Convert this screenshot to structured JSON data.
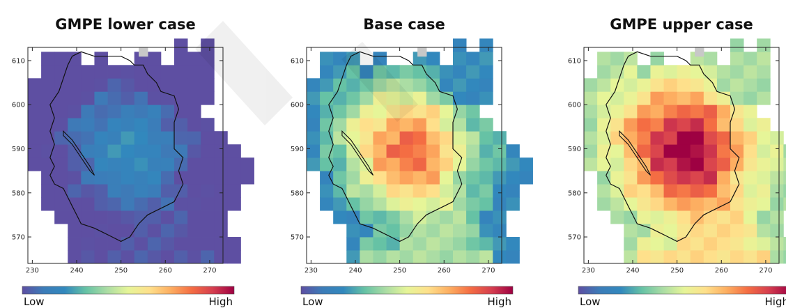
{
  "chart_data": [
    {
      "type": "heatmap",
      "title": "GMPE lower case",
      "xticks": [
        230,
        240,
        250,
        260,
        270
      ],
      "yticks": [
        570,
        580,
        590,
        600,
        610
      ],
      "xlim": [
        229,
        273
      ],
      "ylim": [
        564,
        613
      ],
      "colorbar": {
        "low_label": "Low",
        "high_label": "High"
      },
      "shift": -2.7,
      "scale": 0.45
    },
    {
      "type": "heatmap",
      "title": "Base case",
      "xticks": [
        230,
        240,
        250,
        260,
        270
      ],
      "yticks": [
        570,
        580,
        590,
        600,
        610
      ],
      "xlim": [
        229,
        273
      ],
      "ylim": [
        564,
        613
      ],
      "colorbar": {
        "low_label": "Low",
        "high_label": "High"
      },
      "shift": 0,
      "scale": 1
    },
    {
      "type": "heatmap",
      "title": "GMPE upper case",
      "xticks": [
        230,
        240,
        250,
        260,
        270
      ],
      "yticks": [
        570,
        580,
        590,
        600,
        610
      ],
      "xlim": [
        229,
        273
      ],
      "ylim": [
        564,
        613
      ],
      "colorbar": {
        "low_label": "Low",
        "high_label": "High"
      },
      "shift": 2.0,
      "scale": 1
    }
  ],
  "grid": {
    "x0": 229,
    "y0": 564,
    "dx": 3,
    "dy": 3,
    "rows": [
      "...2444444444422.",
      "...2333444443322.",
      "...223344444422..",
      "..2233345444322..",
      ".223445555543322.",
      ".234456666543322.",
      ".2345677775433222",
      "23345778876543322",
      "2335678887654332.",
      "234567788765433..",
      "23456677765433...",
      "2334556666543....",
      "23334555543222...",
      "22333444432222...",
      ".2232333332222...",
      ".222.2..22.222...",
      "...........2.2..."
    ]
  },
  "gray_cell": {
    "x": 254,
    "y": 611
  },
  "colormap": [
    "#5e4fa2",
    "#3c7cb8",
    "#3288bd",
    "#66c2a5",
    "#abdda4",
    "#e6f598",
    "#fee08b",
    "#fdae61",
    "#f46d43",
    "#d53e4f",
    "#9e0142"
  ]
}
